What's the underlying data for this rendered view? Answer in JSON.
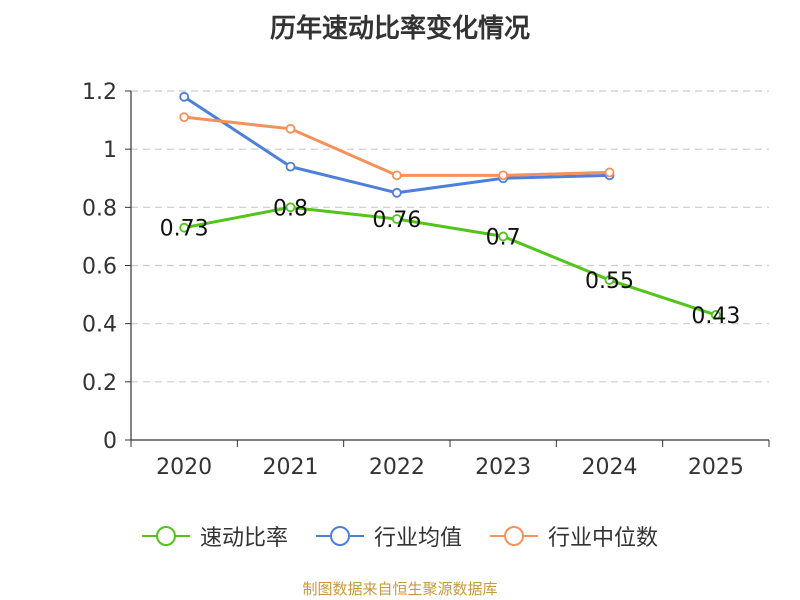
{
  "chart_data": {
    "type": "line",
    "title": "历年速动比率变化情况",
    "categories": [
      "2020",
      "2021",
      "2022",
      "2023",
      "2024",
      "2025"
    ],
    "ylim": [
      0,
      1.2
    ],
    "yticks": [
      0,
      0.2,
      0.4,
      0.6,
      0.8,
      1,
      1.2
    ],
    "ytick_labels": [
      "0",
      "0.2",
      "0.4",
      "0.6",
      "0.8",
      "1",
      "1.2"
    ],
    "grid": true,
    "legend_position": "bottom",
    "series": [
      {
        "name": "速动比率",
        "color": "#52c41a",
        "values": [
          0.73,
          0.8,
          0.76,
          0.7,
          0.55,
          0.43
        ],
        "data_labels": [
          "0.73",
          "0.8",
          "0.76",
          "0.7",
          "0.55",
          "0.43"
        ]
      },
      {
        "name": "行业均值",
        "color": "#4e7fd9",
        "values": [
          1.18,
          0.94,
          0.85,
          0.9,
          0.91,
          null
        ]
      },
      {
        "name": "行业中位数",
        "color": "#f5915a",
        "values": [
          1.11,
          1.07,
          0.91,
          0.91,
          0.92,
          null
        ]
      }
    ]
  },
  "footer": {
    "text": "制图数据来自恒生聚源数据库",
    "color": "#c89a3a"
  }
}
